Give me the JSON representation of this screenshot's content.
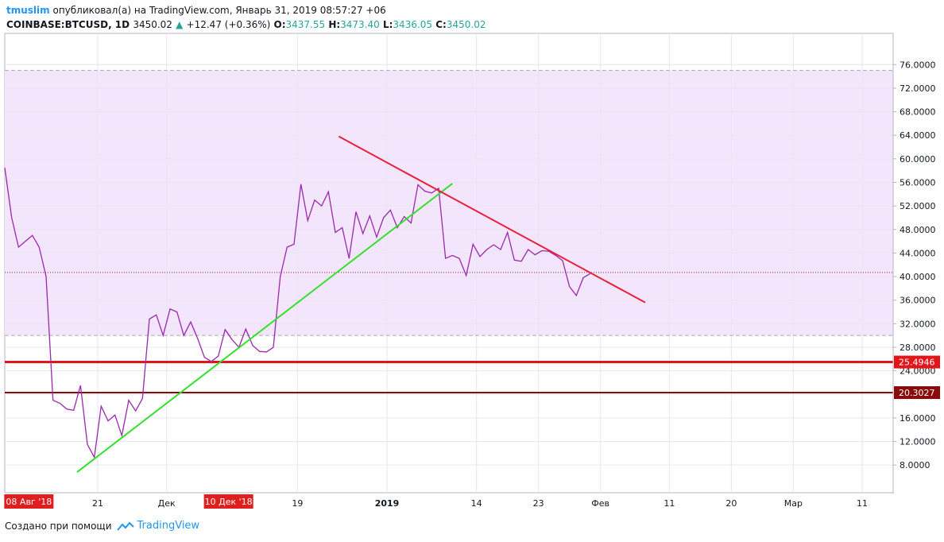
{
  "header": {
    "author": "tmuslim",
    "published_text": "опубликовал(а) на TradingView.com, Январь 31, 2019 08:57:27 +06",
    "symbol": "COINBASE:BTCUSD, 1D",
    "last": "3450.02",
    "change_arrow": "▲",
    "change": "+12.47 (+0.36%)",
    "o_label": "O:",
    "o_value": "3437.55",
    "h_label": "H:",
    "h_value": "3473.40",
    "l_label": "L:",
    "l_value": "3436.05",
    "c_label": "C:",
    "c_value": "3450.02"
  },
  "footer": {
    "created_with": "Создано при помощи",
    "brand": "TradingView",
    "logo_icon": "tradingview-cloud-icon"
  },
  "colors": {
    "price_line": "#9c27b0",
    "zone_fill": "#f3e5fc",
    "green_trendline": "#33e02e",
    "red_trendline": "#e8213a",
    "support_line": "#e0161b",
    "support_line_dark": "#8b0a0a",
    "date_label_bg": "#e01e1e"
  },
  "chart_data": {
    "type": "line",
    "series": [
      {
        "values": [
          58.5,
          50,
          45,
          46,
          47,
          45,
          40,
          19,
          18.5,
          17.5,
          17.3,
          21.5,
          11.5,
          9.3,
          18,
          15.5,
          16.5,
          13,
          19,
          17.2,
          19.3,
          32.8,
          33.5,
          30,
          34.5,
          34,
          30,
          32.3,
          29.5,
          26.3,
          25.6,
          26.5,
          31,
          29.3,
          28,
          31.1,
          28.3,
          27.3,
          27.2,
          28,
          40,
          45,
          45.5,
          55.7,
          49.5,
          53,
          52,
          54.4,
          47.5,
          48.3,
          43.1,
          51,
          47.3,
          50.3,
          46.7,
          50,
          51.3,
          48.3,
          50.2,
          49.1,
          55.6,
          54.5,
          54.2,
          55,
          43.1,
          43.6,
          43.1,
          40.2,
          45.5,
          43.4,
          44.6,
          45.4,
          44.6,
          47.5,
          42.8,
          42.6,
          44.6,
          43.7,
          44.4,
          44.3,
          43.6,
          42.7,
          38.3,
          36.8,
          39.8,
          40.5
        ]
      }
    ],
    "x_tick_labels": [
      "21",
      "Дек",
      "19",
      "2019",
      "14",
      "23",
      "Фев",
      "11",
      "20",
      "Мар",
      "11"
    ],
    "x_tick_index": [
      13.5,
      23.5,
      42.5,
      55.5,
      68.5,
      77.5,
      86.5,
      96.5,
      105.5,
      114.5,
      124.5
    ],
    "x_tick_bold": [
      false,
      false,
      false,
      true,
      false,
      false,
      false,
      false,
      false,
      false,
      false
    ],
    "date_labels": [
      {
        "text": "08 Авг '18",
        "index": 3.5
      },
      {
        "text": "10 Дек '18",
        "index": 32.5
      }
    ],
    "y_ticks": [
      "76.0000",
      "72.0000",
      "68.0000",
      "64.0000",
      "60.0000",
      "56.0000",
      "52.0000",
      "48.0000",
      "44.0000",
      "40.0000",
      "36.0000",
      "32.0000",
      "28.0000",
      "24.0000",
      "20.0000",
      "16.0000",
      "12.0000",
      "8.0000"
    ],
    "y_tick_values": [
      76,
      72,
      68,
      64,
      60,
      56,
      52,
      48,
      44,
      40,
      36,
      32,
      28,
      24,
      20,
      16,
      12,
      8
    ],
    "ylim": [
      3.3,
      81.3
    ],
    "x_range": [
      0,
      129
    ],
    "zone": {
      "from": 30,
      "to": 75
    },
    "dotted_level": 40.7,
    "horizontal_levels": [
      {
        "value": 25.4946,
        "label": "25.4946"
      },
      {
        "value": 20.3027,
        "label": "20.3027"
      }
    ],
    "trendlines": [
      {
        "color": "green",
        "from": [
          10.5,
          6.8
        ],
        "to": [
          65,
          55.8
        ]
      },
      {
        "color": "red",
        "from": [
          48.5,
          63.8
        ],
        "to": [
          93,
          35.6
        ]
      }
    ]
  }
}
